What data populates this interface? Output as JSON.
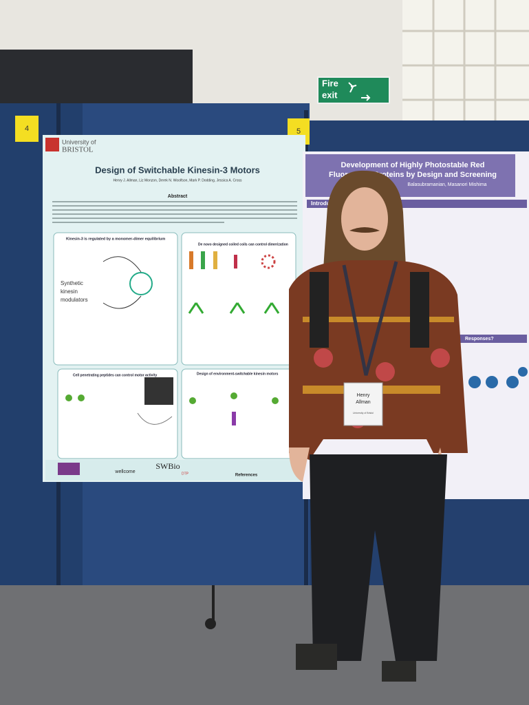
{
  "signs": {
    "fire_exit_lines": [
      "Fire",
      "exit"
    ],
    "board_numbers": [
      "4",
      "5"
    ]
  },
  "poster_left": {
    "university_lines": [
      "University of",
      "BRISTOL"
    ],
    "title": "Design of Switchable Kinesin-3 Motors",
    "authors": "Henry J. Allman, Liz Monzon, Derek N. Woolfson, Mark P. Dodding, Jessica A. Cross",
    "abstract_heading": "Abstract",
    "sections": [
      "Kinesin-3 is regulated by a monomer-dimer equilibrium",
      "De novo designed coiled coils can control dimerization",
      "Cell penetrating peptides can control motor activity",
      "Design of environment-switchable kinesin motors"
    ],
    "diagram_label_lines": [
      "Synthetic",
      "kinesin",
      "modulators"
    ],
    "references_heading": "References",
    "logos": [
      "wellcome",
      "SWBio",
      "DTP"
    ]
  },
  "poster_right": {
    "title_lines": [
      "Development of Highly Photostable Red",
      "Fluorescent Proteins by Design and Screening"
    ],
    "authors_fragment": "Balasubramanian, Masanori Mishima",
    "introduction_heading": "Introduction",
    "question_heading": "Responses?"
  },
  "badge": {
    "name_lines": [
      "Henry",
      "Allman"
    ],
    "affiliation": "University of Bristol"
  }
}
